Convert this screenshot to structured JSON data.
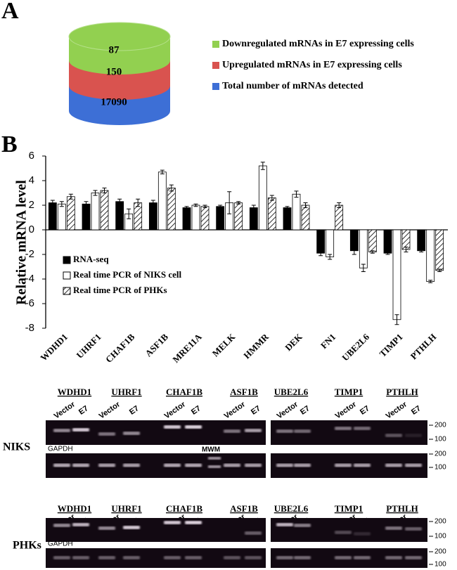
{
  "panel_labels": [
    "A",
    "B"
  ],
  "chart_data": [
    {
      "type": "cylinder",
      "categories": [
        "Downregulated mRNAs in E7 expressing cells",
        "Upregulated mRNAs in E7 expressing cells",
        "Total number of mRNAs detected"
      ],
      "values": [
        87,
        150,
        17090
      ],
      "colors": [
        "#92d050",
        "#d9534f",
        "#3d6fd6"
      ]
    },
    {
      "type": "bar",
      "ylabel": "Relative mRNA level",
      "categories": [
        "WDHD1",
        "UHRF1",
        "CHAF1B",
        "ASF1B",
        "MRE11A",
        "MELK",
        "HMMR",
        "DEK",
        "FN1",
        "UBE2L6",
        "TIMP1",
        "PTHLH"
      ],
      "series": [
        {
          "name": "RNA-seq",
          "color": "#000000",
          "style": "solid",
          "values": [
            2.2,
            2.1,
            2.3,
            2.2,
            1.8,
            1.9,
            1.8,
            1.8,
            -1.9,
            -1.7,
            -1.9,
            -1.7
          ],
          "errors": [
            0.2,
            0.2,
            0.2,
            0.2,
            0.1,
            0.1,
            0.2,
            0.1,
            0.2,
            0.3,
            0.1,
            0.1
          ]
        },
        {
          "name": "Real time PCR of NIKS cell",
          "color": "#ffffff",
          "style": "solid",
          "values": [
            2.1,
            3.0,
            1.3,
            4.7,
            2.0,
            2.2,
            5.2,
            2.9,
            -2.2,
            -3.1,
            -7.3,
            -4.2
          ],
          "errors": [
            0.2,
            0.2,
            0.4,
            0.15,
            0.1,
            0.9,
            0.3,
            0.25,
            0.2,
            0.3,
            0.4,
            0.1
          ]
        },
        {
          "name": "Real time PCR of PHKs",
          "color": "#000000",
          "style": "hatch",
          "values": [
            2.7,
            3.2,
            2.2,
            3.4,
            1.9,
            2.2,
            2.6,
            2.0,
            2.0,
            -1.8,
            -1.6,
            -3.3
          ],
          "errors": [
            0.2,
            0.2,
            0.3,
            0.25,
            0.1,
            0.1,
            0.2,
            0.2,
            0.2,
            0.1,
            0.2,
            0.1
          ]
        }
      ],
      "ylim": [
        -8,
        6
      ],
      "yticks": [
        -8,
        -6,
        -4,
        -2,
        0,
        2,
        4,
        6
      ]
    }
  ],
  "gel_panel": {
    "genes": [
      "WDHD1",
      "UHRF1",
      "CHAF1B",
      "ASF1B",
      "UBE2L6",
      "TIMP1",
      "PTHLH"
    ],
    "lane_labels": [
      "Vector",
      "E7"
    ],
    "rows": [
      {
        "label": "NIKS",
        "control": "GAPDH",
        "marker": "MWM"
      },
      {
        "label": "PHKs",
        "control": "GAPDH"
      }
    ],
    "size_markers": [
      200,
      100
    ]
  }
}
